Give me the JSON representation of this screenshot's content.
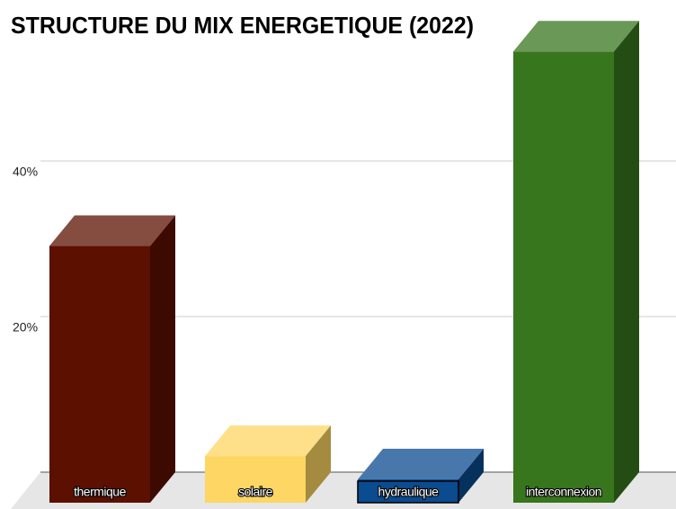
{
  "chart_data": {
    "type": "bar3d",
    "title": "STRUCTURE DU MIX ENERGETIQUE (2022)",
    "categories": [
      "thermique",
      "solaire",
      "hydraulique",
      "interconnexion"
    ],
    "values": [
      33,
      6,
      3,
      58
    ],
    "colors": [
      "#5c1000",
      "#fdd663",
      "#0b4b8f",
      "#38761d"
    ],
    "ylim": [
      0,
      60
    ],
    "yticks": [
      {
        "value": 20,
        "label": "20%"
      },
      {
        "value": 40,
        "label": "40%"
      }
    ],
    "grid": true
  }
}
